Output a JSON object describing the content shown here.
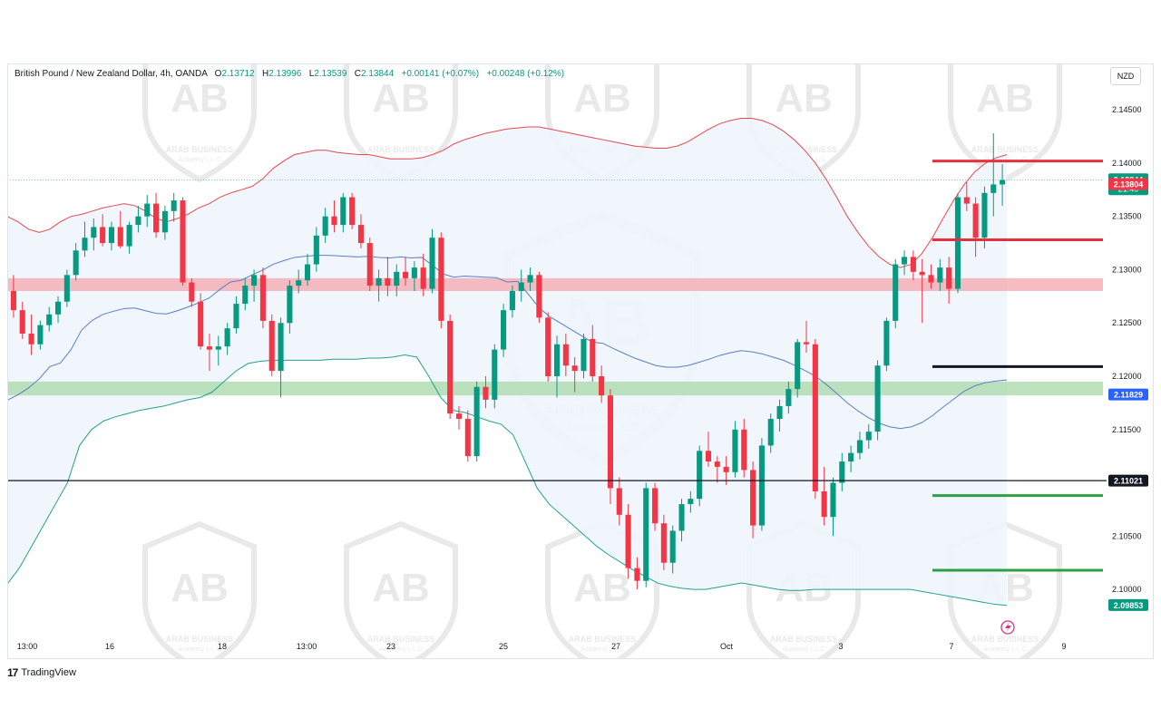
{
  "header": {
    "symbol": "British Pound / New Zealand Dollar, 4h, OANDA",
    "open_label": "O",
    "open": "2.13712",
    "high_label": "H",
    "high": "2.13996",
    "low_label": "L",
    "low": "2.13539",
    "close_label": "C",
    "close": "2.13844",
    "change": "+0.00141 (+0.07%)",
    "change2": "+0.00248 (+0.12%)"
  },
  "currency": "NZD",
  "branding": {
    "name": "TradingView"
  },
  "colors": {
    "up": "#089981",
    "down": "#f23645",
    "bb_upper": "#e8484f",
    "bb_lower": "#24a18f",
    "bb_mid": "#5b7fc4",
    "bb_fill": "#eef5fc"
  },
  "price_axis": {
    "ticks": [
      "2.14500",
      "2.14000",
      "2.13500",
      "2.13000",
      "2.12500",
      "2.12000",
      "2.11500",
      "2.11000",
      "2.10500",
      "2.10000"
    ],
    "range": [
      2.0955,
      2.1485
    ]
  },
  "price_labels": [
    {
      "value": "2.13844",
      "sub": "21:40",
      "price": 2.13844,
      "color": "#089981"
    },
    {
      "value": "2.13804",
      "price": 2.13804,
      "color": "#f23645"
    },
    {
      "value": "2.11829",
      "price": 2.11829,
      "color": "#2962ff"
    },
    {
      "value": "2.11021",
      "price": 2.11021,
      "color": "#131722"
    },
    {
      "value": "2.09853",
      "price": 2.09853,
      "color": "#089981"
    }
  ],
  "time_axis": {
    "labels": [
      "13:00",
      "16",
      "18",
      "13:00",
      "23",
      "25",
      "27",
      "Oct",
      "3",
      "7",
      "9"
    ]
  },
  "zones": [
    {
      "name": "resistance-zone",
      "low": 2.128,
      "high": 2.1292,
      "color": "#f4a6ad"
    },
    {
      "name": "support-zone",
      "low": 2.1182,
      "high": 2.1195,
      "color": "#a8d8a8"
    }
  ],
  "levels": [
    {
      "name": "red-level-upper",
      "price": 2.1402,
      "color": "#e5313f"
    },
    {
      "name": "red-level-lower",
      "price": 2.1328,
      "color": "#e5313f"
    },
    {
      "name": "black-level",
      "price": 2.1209,
      "color": "#131722"
    },
    {
      "name": "horizontal-line",
      "price": 2.11021,
      "color": "#131722"
    },
    {
      "name": "green-level-upper",
      "price": 2.1088,
      "color": "#2ea043"
    },
    {
      "name": "green-level-lower",
      "price": 2.1018,
      "color": "#2ea043"
    }
  ],
  "watermark": {
    "text": "ARAB BUSINESS",
    "subtext": "Academy L.L.C",
    "initials": "AB"
  },
  "chart_data": {
    "type": "candlestick",
    "candles": [
      [
        2.128,
        2.1295,
        2.1255,
        2.1262
      ],
      [
        2.1262,
        2.127,
        2.1235,
        2.124
      ],
      [
        2.124,
        2.1258,
        2.122,
        2.123
      ],
      [
        2.123,
        2.1252,
        2.1225,
        2.1248
      ],
      [
        2.1248,
        2.1265,
        2.1242,
        2.1258
      ],
      [
        2.1258,
        2.1275,
        2.125,
        2.127
      ],
      [
        2.127,
        2.13,
        2.1265,
        2.1295
      ],
      [
        2.1295,
        2.1325,
        2.129,
        2.1318
      ],
      [
        2.1318,
        2.1345,
        2.1312,
        2.133
      ],
      [
        2.133,
        2.1348,
        2.1318,
        2.134
      ],
      [
        2.134,
        2.1352,
        2.1322,
        2.1325
      ],
      [
        2.1325,
        2.1345,
        2.1318,
        2.134
      ],
      [
        2.134,
        2.1355,
        2.132,
        2.1322
      ],
      [
        2.1322,
        2.1345,
        2.1315,
        2.1342
      ],
      [
        2.1342,
        2.136,
        2.1335,
        2.135
      ],
      [
        2.135,
        2.137,
        2.134,
        2.1362
      ],
      [
        2.1362,
        2.1372,
        2.133,
        2.1335
      ],
      [
        2.1335,
        2.136,
        2.1328,
        2.1355
      ],
      [
        2.1355,
        2.1372,
        2.1345,
        2.1365
      ],
      [
        2.1365,
        2.1368,
        2.1285,
        2.1288
      ],
      [
        2.1288,
        2.1292,
        2.1265,
        2.127
      ],
      [
        2.127,
        2.1278,
        2.1225,
        2.1228
      ],
      [
        2.1228,
        2.124,
        2.1205,
        2.1225
      ],
      [
        2.1225,
        2.1238,
        2.121,
        2.1228
      ],
      [
        2.1228,
        2.125,
        2.122,
        2.1245
      ],
      [
        2.1245,
        2.1275,
        2.124,
        2.1268
      ],
      [
        2.1268,
        2.1292,
        2.1262,
        2.1285
      ],
      [
        2.1285,
        2.13,
        2.127,
        2.1295
      ],
      [
        2.1295,
        2.1302,
        2.1245,
        2.1252
      ],
      [
        2.1252,
        2.1258,
        2.12,
        2.1205
      ],
      [
        2.1205,
        2.1255,
        2.118,
        2.125
      ],
      [
        2.125,
        2.129,
        2.124,
        2.1285
      ],
      [
        2.1285,
        2.13,
        2.1278,
        2.129
      ],
      [
        2.129,
        2.1315,
        2.1285,
        2.1305
      ],
      [
        2.1305,
        2.134,
        2.1298,
        2.1332
      ],
      [
        2.1332,
        2.1358,
        2.1325,
        2.135
      ],
      [
        2.135,
        2.1365,
        2.1335,
        2.1342
      ],
      [
        2.1342,
        2.1372,
        2.1335,
        2.1368
      ],
      [
        2.1368,
        2.1372,
        2.1338,
        2.1342
      ],
      [
        2.1342,
        2.1352,
        2.132,
        2.1325
      ],
      [
        2.1325,
        2.133,
        2.128,
        2.1285
      ],
      [
        2.1285,
        2.13,
        2.127,
        2.1292
      ],
      [
        2.1292,
        2.1312,
        2.1275,
        2.1285
      ],
      [
        2.1285,
        2.1305,
        2.1275,
        2.1298
      ],
      [
        2.1298,
        2.1312,
        2.1285,
        2.1292
      ],
      [
        2.1292,
        2.1308,
        2.128,
        2.1302
      ],
      [
        2.1302,
        2.1315,
        2.1275,
        2.1282
      ],
      [
        2.1282,
        2.1338,
        2.1278,
        2.133
      ],
      [
        2.133,
        2.1335,
        2.1245,
        2.1252
      ],
      [
        2.1252,
        2.1258,
        2.116,
        2.1165
      ],
      [
        2.1165,
        2.1172,
        2.115,
        2.116
      ],
      [
        2.116,
        2.1168,
        2.112,
        2.1125
      ],
      [
        2.1125,
        2.1195,
        2.112,
        2.119
      ],
      [
        2.119,
        2.12,
        2.117,
        2.1178
      ],
      [
        2.1178,
        2.123,
        2.117,
        2.1225
      ],
      [
        2.1225,
        2.1268,
        2.1218,
        2.1262
      ],
      [
        2.1262,
        2.1285,
        2.1255,
        2.128
      ],
      [
        2.128,
        2.13,
        2.127,
        2.1288
      ],
      [
        2.1288,
        2.1302,
        2.128,
        2.1295
      ],
      [
        2.1295,
        2.1298,
        2.125,
        2.1255
      ],
      [
        2.1255,
        2.126,
        2.1195,
        2.12
      ],
      [
        2.12,
        2.1238,
        2.118,
        2.123
      ],
      [
        2.123,
        2.124,
        2.12,
        2.121
      ],
      [
        2.121,
        2.1218,
        2.1185,
        2.1205
      ],
      [
        2.1205,
        2.124,
        2.1198,
        2.1235
      ],
      [
        2.1235,
        2.1248,
        2.1195,
        2.12
      ],
      [
        2.12,
        2.121,
        2.1175,
        2.1182
      ],
      [
        2.1182,
        2.1188,
        2.108,
        2.1095
      ],
      [
        2.1095,
        2.1105,
        2.106,
        2.107
      ],
      [
        2.107,
        2.108,
        2.101,
        2.102
      ],
      [
        2.102,
        2.103,
        2.1,
        2.1008
      ],
      [
        2.1008,
        2.11,
        2.1002,
        2.1095
      ],
      [
        2.1095,
        2.11,
        2.1055,
        2.1062
      ],
      [
        2.1062,
        2.107,
        2.1018,
        2.1025
      ],
      [
        2.1025,
        2.106,
        2.1015,
        2.1055
      ],
      [
        2.1055,
        2.1085,
        2.1045,
        2.108
      ],
      [
        2.108,
        2.1092,
        2.1072,
        2.1085
      ],
      [
        2.1085,
        2.1135,
        2.1078,
        2.113
      ],
      [
        2.113,
        2.1148,
        2.1115,
        2.112
      ],
      [
        2.112,
        2.1125,
        2.11,
        2.1115
      ],
      [
        2.1115,
        2.1125,
        2.1098,
        2.111
      ],
      [
        2.111,
        2.1158,
        2.1105,
        2.115
      ],
      [
        2.115,
        2.116,
        2.1105,
        2.1112
      ],
      [
        2.1112,
        2.112,
        2.1048,
        2.106
      ],
      [
        2.106,
        2.1142,
        2.1055,
        2.1135
      ],
      [
        2.1135,
        2.1165,
        2.1128,
        2.116
      ],
      [
        2.116,
        2.1178,
        2.1148,
        2.1172
      ],
      [
        2.1172,
        2.1195,
        2.1165,
        2.1188
      ],
      [
        2.1188,
        2.1235,
        2.118,
        2.1232
      ],
      [
        2.1232,
        2.1252,
        2.1222,
        2.123
      ],
      [
        2.123,
        2.1235,
        2.1085,
        2.1092
      ],
      [
        2.1092,
        2.1115,
        2.106,
        2.1068
      ],
      [
        2.1068,
        2.1105,
        2.105,
        2.11
      ],
      [
        2.11,
        2.1128,
        2.1092,
        2.112
      ],
      [
        2.112,
        2.1135,
        2.111,
        2.1128
      ],
      [
        2.1128,
        2.1148,
        2.1122,
        2.114
      ],
      [
        2.114,
        2.1155,
        2.1132,
        2.1148
      ],
      [
        2.1148,
        2.1215,
        2.114,
        2.121
      ],
      [
        2.121,
        2.1255,
        2.1205,
        2.1252
      ],
      [
        2.1252,
        2.131,
        2.1245,
        2.1305
      ],
      [
        2.1305,
        2.1318,
        2.1295,
        2.1312
      ],
      [
        2.1312,
        2.1318,
        2.129,
        2.1298
      ],
      [
        2.1298,
        2.131,
        2.125,
        2.1295
      ],
      [
        2.1295,
        2.1305,
        2.1282,
        2.1288
      ],
      [
        2.1288,
        2.131,
        2.128,
        2.1302
      ],
      [
        2.1302,
        2.1312,
        2.1268,
        2.1282
      ],
      [
        2.1282,
        2.1372,
        2.1278,
        2.1368
      ],
      [
        2.1368,
        2.1382,
        2.1355,
        2.1362
      ],
      [
        2.1362,
        2.1368,
        2.1312,
        2.133
      ],
      [
        2.133,
        2.1378,
        2.132,
        2.1372
      ],
      [
        2.1372,
        2.1428,
        2.135,
        2.138
      ],
      [
        2.138,
        2.1399,
        2.136,
        2.1384
      ]
    ],
    "bb_upper": [
      2.135,
      2.1345,
      2.1338,
      2.1335,
      2.1338,
      2.1345,
      2.135,
      2.1352,
      2.1355,
      2.1358,
      2.136,
      2.1362,
      2.136,
      2.1355,
      2.1348,
      2.1345,
      2.1348,
      2.1352,
      2.1358,
      2.1362,
      2.1368,
      2.1372,
      2.1375,
      2.1378,
      2.1385,
      2.1395,
      2.1402,
      2.1408,
      2.141,
      2.1412,
      2.1412,
      2.141,
      2.1409,
      2.1408,
      2.1408,
      2.1406,
      2.1404,
      2.1404,
      2.1404,
      2.1405,
      2.1408,
      2.1412,
      2.1418,
      2.1422,
      2.1425,
      2.1428,
      2.143,
      2.1432,
      2.1433,
      2.1434,
      2.1434,
      2.1432,
      2.143,
      2.1428,
      2.1426,
      2.1424,
      2.1422,
      2.142,
      2.1418,
      2.1416,
      2.1415,
      2.1414,
      2.1414,
      2.1416,
      2.142,
      2.1426,
      2.1432,
      2.1437,
      2.144,
      2.1442,
      2.1442,
      2.144,
      2.1436,
      2.143,
      2.1422,
      2.1412,
      2.14,
      2.1385,
      2.1368,
      2.135,
      2.1335,
      2.1322,
      2.1312,
      2.1305,
      2.1302,
      2.1305,
      2.1315,
      2.133,
      2.1348,
      2.1365,
      2.138,
      2.1392,
      2.14,
      2.1405,
      2.1408
    ],
    "bb_lower": [
      2.1005,
      2.102,
      2.104,
      2.106,
      2.108,
      2.11,
      2.1135,
      2.115,
      2.1158,
      2.1162,
      2.1165,
      2.1168,
      2.117,
      2.1172,
      2.1175,
      2.1178,
      2.118,
      2.1185,
      2.1195,
      2.1205,
      2.1212,
      2.1214,
      2.1215,
      2.1215,
      2.1215,
      2.1215,
      2.1215,
      2.1216,
      2.1216,
      2.1216,
      2.1217,
      2.1217,
      2.1218,
      2.122,
      2.1218,
      2.12,
      2.118,
      2.1168,
      2.1166,
      2.1162,
      2.1158,
      2.1155,
      2.1145,
      2.112,
      2.1095,
      2.108,
      2.107,
      2.106,
      2.105,
      2.104,
      2.1032,
      2.1025,
      2.1018,
      2.1012,
      2.1006,
      2.1003,
      2.1001,
      2.1,
      2.1,
      2.1002,
      2.1004,
      2.1006,
      2.1004,
      2.1002,
      2.1,
      2.0999,
      2.0999,
      2.1,
      2.1,
      2.1,
      2.1,
      2.1,
      2.1,
      2.1,
      2.1,
      2.1,
      2.0998,
      2.0996,
      2.0994,
      2.0992,
      2.099,
      2.0988,
      2.0986,
      2.0985
    ]
  }
}
